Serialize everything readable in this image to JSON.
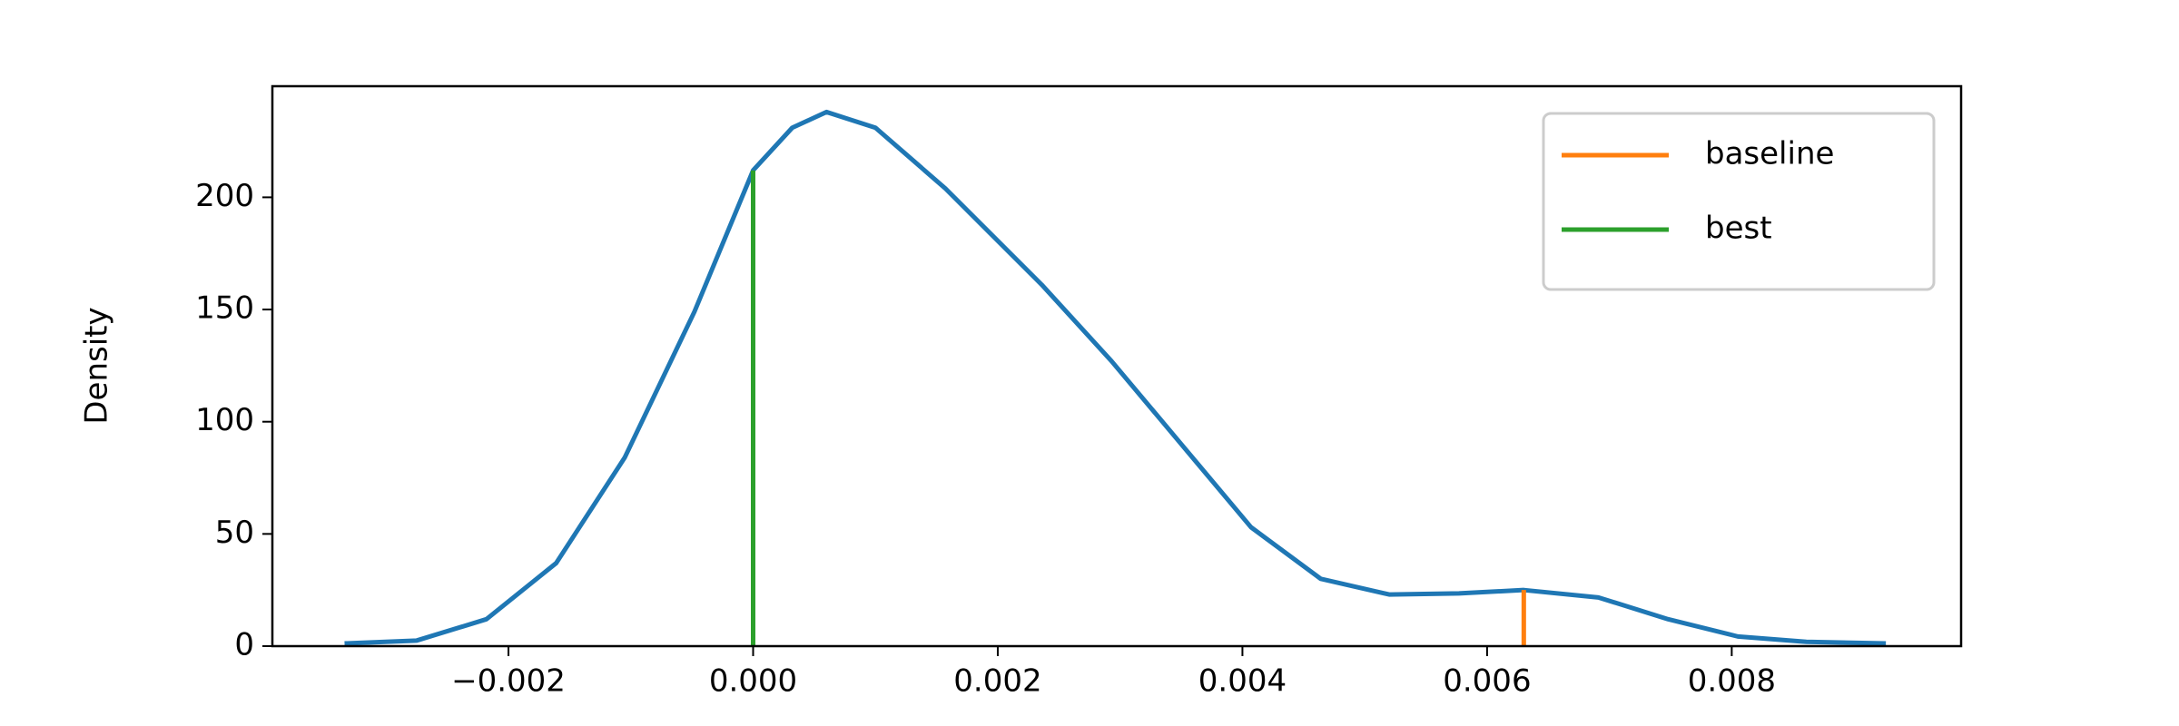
{
  "chart_data": {
    "type": "kde",
    "ylabel": "Density",
    "x": [
      -0.00334,
      -0.00275,
      -0.00218,
      -0.00161,
      -0.00105,
      -0.00048,
      0.0,
      0.00032,
      0.0006,
      0.001,
      0.00157,
      0.00236,
      0.00293,
      0.0035,
      0.00407,
      0.00464,
      0.0052,
      0.00577,
      0.0063,
      0.00691,
      0.00748,
      0.00805,
      0.00861,
      0.00926
    ],
    "values": [
      1.2,
      2.5,
      12,
      37,
      84,
      149,
      212,
      231,
      238,
      231,
      204,
      161,
      127,
      90,
      53,
      30,
      23,
      23.5,
      25,
      21.7,
      12,
      4.3,
      1.9,
      1.2
    ],
    "color": "#1f77b4",
    "vlines": [
      {
        "name": "baseline",
        "color": "#ff7f0e",
        "x": 0.0063,
        "y": 25
      },
      {
        "name": "best",
        "color": "#2ca02c",
        "x": 0.0,
        "y": 212
      }
    ],
    "xlim": [
      -0.00393,
      0.009875
    ],
    "ylim": [
      0,
      249.5
    ],
    "xticks": [
      {
        "value": -0.002,
        "label": "−0.002"
      },
      {
        "value": 0.0,
        "label": "0.000"
      },
      {
        "value": 0.002,
        "label": "0.002"
      },
      {
        "value": 0.004,
        "label": "0.004"
      },
      {
        "value": 0.006,
        "label": "0.006"
      },
      {
        "value": 0.008,
        "label": "0.008"
      }
    ],
    "yticks": [
      0,
      50,
      100,
      150,
      200
    ],
    "legend": "upper right"
  }
}
